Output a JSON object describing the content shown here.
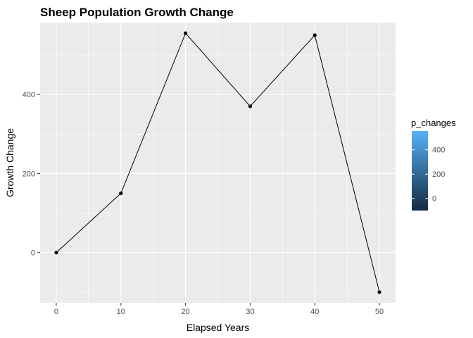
{
  "chart_data": {
    "type": "line",
    "title": "Sheep Population Growth Change",
    "xlabel": "Elapsed Years",
    "ylabel": "Growth Change",
    "x": [
      0,
      10,
      20,
      30,
      40,
      50
    ],
    "series": [
      {
        "values": [
          0,
          150,
          555,
          370,
          550,
          -100
        ]
      }
    ],
    "xlim": [
      -2.5,
      52.5
    ],
    "ylim": [
      -127,
      582
    ],
    "x_ticks": [
      0,
      10,
      20,
      30,
      40,
      50
    ],
    "x_tick_labels": [
      "0",
      "10",
      "20",
      "30",
      "40",
      "50"
    ],
    "y_ticks": [
      0,
      200,
      400
    ],
    "y_tick_labels": [
      "0",
      "200",
      "400"
    ],
    "grid": true,
    "markers": true,
    "legend": {
      "title": "p_changes",
      "position": "right",
      "type": "colorbar",
      "range": [
        -100,
        555
      ],
      "ticks": [
        0,
        200,
        400
      ],
      "tick_labels": [
        "0",
        "200",
        "400"
      ],
      "low_color": "#132B43",
      "high_color": "#56B1F7"
    },
    "colors": {
      "panel_background": "#EBEBEB",
      "grid_line": "#FFFFFF",
      "line": "#000000",
      "point": "#000000"
    }
  }
}
